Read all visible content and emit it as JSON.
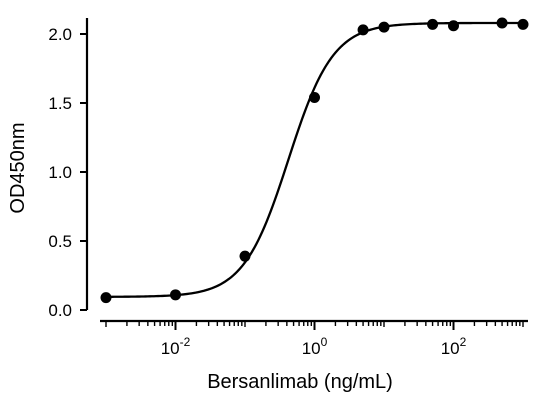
{
  "chart_data": {
    "type": "scatter",
    "xscale": "log",
    "x_ticks": [
      {
        "base": "10",
        "exp": "-2",
        "value": 0.01
      },
      {
        "base": "10",
        "exp": "0",
        "value": 1
      },
      {
        "base": "10",
        "exp": "2",
        "value": 100
      }
    ],
    "y_ticks": [
      "0.0",
      "0.5",
      "1.0",
      "1.5",
      "2.0"
    ],
    "xlabel": "Bersanlimab (ng/mL)",
    "ylabel": "OD450nm",
    "xlim": [
      0.001,
      1000
    ],
    "ylim": [
      0,
      2.1
    ],
    "grid": false,
    "series": [
      {
        "x": [
          0.001,
          0.01,
          0.1,
          1,
          5,
          10,
          50,
          100,
          500,
          1000
        ],
        "y": [
          0.09,
          0.11,
          0.39,
          1.54,
          2.03,
          2.05,
          2.07,
          2.06,
          2.08,
          2.07
        ]
      }
    ],
    "fit": {
      "model": "4PL",
      "bottom": 0.095,
      "top": 2.08,
      "ec50": 0.42,
      "hill": 1.35
    },
    "colors": {
      "points": "#000000",
      "curve": "#000000",
      "axes": "#000000"
    }
  }
}
